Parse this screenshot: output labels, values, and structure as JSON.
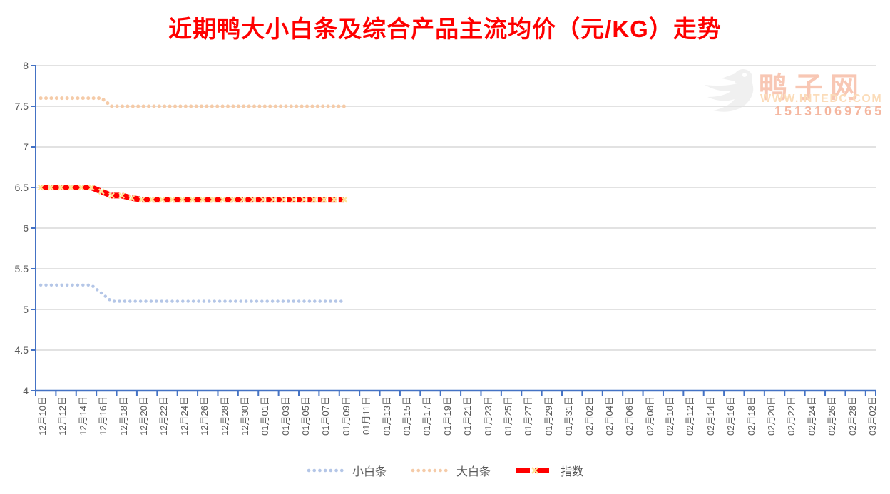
{
  "title": "近期鸭大小白条及综合产品主流均价（元/KG）走势",
  "watermark": {
    "logo": "duck-logo",
    "site_name": "鸭子网",
    "url": "WWW.INTEDC.COM",
    "phone": "15131069765"
  },
  "colors": {
    "title": "#FF0000",
    "axis": "#4472C4",
    "grid": "#D9D9D9",
    "tick_label": "#595959",
    "series_small": "#B4C6E7",
    "series_big": "#F5CBA8",
    "series_index": "#FF0000",
    "index_marker": "#FFE699"
  },
  "chart_data": {
    "type": "line",
    "title": "近期鸭大小白条及综合产品主流均价（元/KG）走势",
    "xlabel": "",
    "ylabel": "",
    "ylim": [
      4,
      8
    ],
    "ytick_step": 0.5,
    "y_tick_labels": [
      "8",
      "7.5",
      "7",
      "6.5",
      "6",
      "5.5",
      "5",
      "4.5",
      "4"
    ],
    "grid": true,
    "legend_position": "bottom",
    "x_tick_labels": [
      "12月10日",
      "12月12日",
      "12月14日",
      "12月16日",
      "12月18日",
      "12月20日",
      "12月22日",
      "12月24日",
      "12月26日",
      "12月28日",
      "12月30日",
      "01月01日",
      "01月03日",
      "01月05日",
      "01月07日",
      "01月09日",
      "01月11日",
      "01月13日",
      "01月15日",
      "01月17日",
      "01月19日",
      "01月21日",
      "01月23日",
      "01月25日",
      "01月27日",
      "01月29日",
      "01月31日",
      "02月02日",
      "02月04日",
      "02月06日",
      "02月08日",
      "02月10日",
      "02月12日",
      "02月14日",
      "02月16日",
      "02月18日",
      "02月20日",
      "02月22日",
      "02月24日",
      "02月26日",
      "02月28日",
      "03月02日"
    ],
    "x": [
      "12月10日",
      "12月11日",
      "12月12日",
      "12月13日",
      "12月14日",
      "12月15日",
      "12月16日",
      "12月17日",
      "12月18日",
      "12月19日",
      "12月20日",
      "12月21日",
      "12月22日",
      "12月23日",
      "12月24日",
      "12月25日",
      "12月26日",
      "12月27日",
      "12月28日",
      "12月29日",
      "12月30日",
      "12月31日",
      "01月01日",
      "01月02日",
      "01月03日",
      "01月04日",
      "01月05日",
      "01月06日",
      "01月07日",
      "01月08日",
      "01月09日"
    ],
    "series": [
      {
        "name": "小白条",
        "style": "dotted",
        "color": "#B4C6E7",
        "values": [
          5.3,
          5.3,
          5.3,
          5.3,
          5.3,
          5.3,
          5.2,
          5.1,
          5.1,
          5.1,
          5.1,
          5.1,
          5.1,
          5.1,
          5.1,
          5.1,
          5.1,
          5.1,
          5.1,
          5.1,
          5.1,
          5.1,
          5.1,
          5.1,
          5.1,
          5.1,
          5.1,
          5.1,
          5.1,
          5.1,
          5.1
        ]
      },
      {
        "name": "大白条",
        "style": "dotted",
        "color": "#F5CBA8",
        "values": [
          7.6,
          7.6,
          7.6,
          7.6,
          7.6,
          7.6,
          7.6,
          7.5,
          7.5,
          7.5,
          7.5,
          7.5,
          7.5,
          7.5,
          7.5,
          7.5,
          7.5,
          7.5,
          7.5,
          7.5,
          7.5,
          7.5,
          7.5,
          7.5,
          7.5,
          7.5,
          7.5,
          7.5,
          7.5,
          7.5,
          7.5
        ]
      },
      {
        "name": "指数",
        "style": "thick-dash-x",
        "color": "#FF0000",
        "marker_color": "#FFE699",
        "values": [
          6.5,
          6.5,
          6.5,
          6.5,
          6.5,
          6.5,
          6.45,
          6.4,
          6.4,
          6.37,
          6.35,
          6.35,
          6.35,
          6.35,
          6.35,
          6.35,
          6.35,
          6.35,
          6.35,
          6.35,
          6.35,
          6.35,
          6.35,
          6.35,
          6.35,
          6.35,
          6.35,
          6.35,
          6.35,
          6.35,
          6.35
        ]
      }
    ]
  }
}
